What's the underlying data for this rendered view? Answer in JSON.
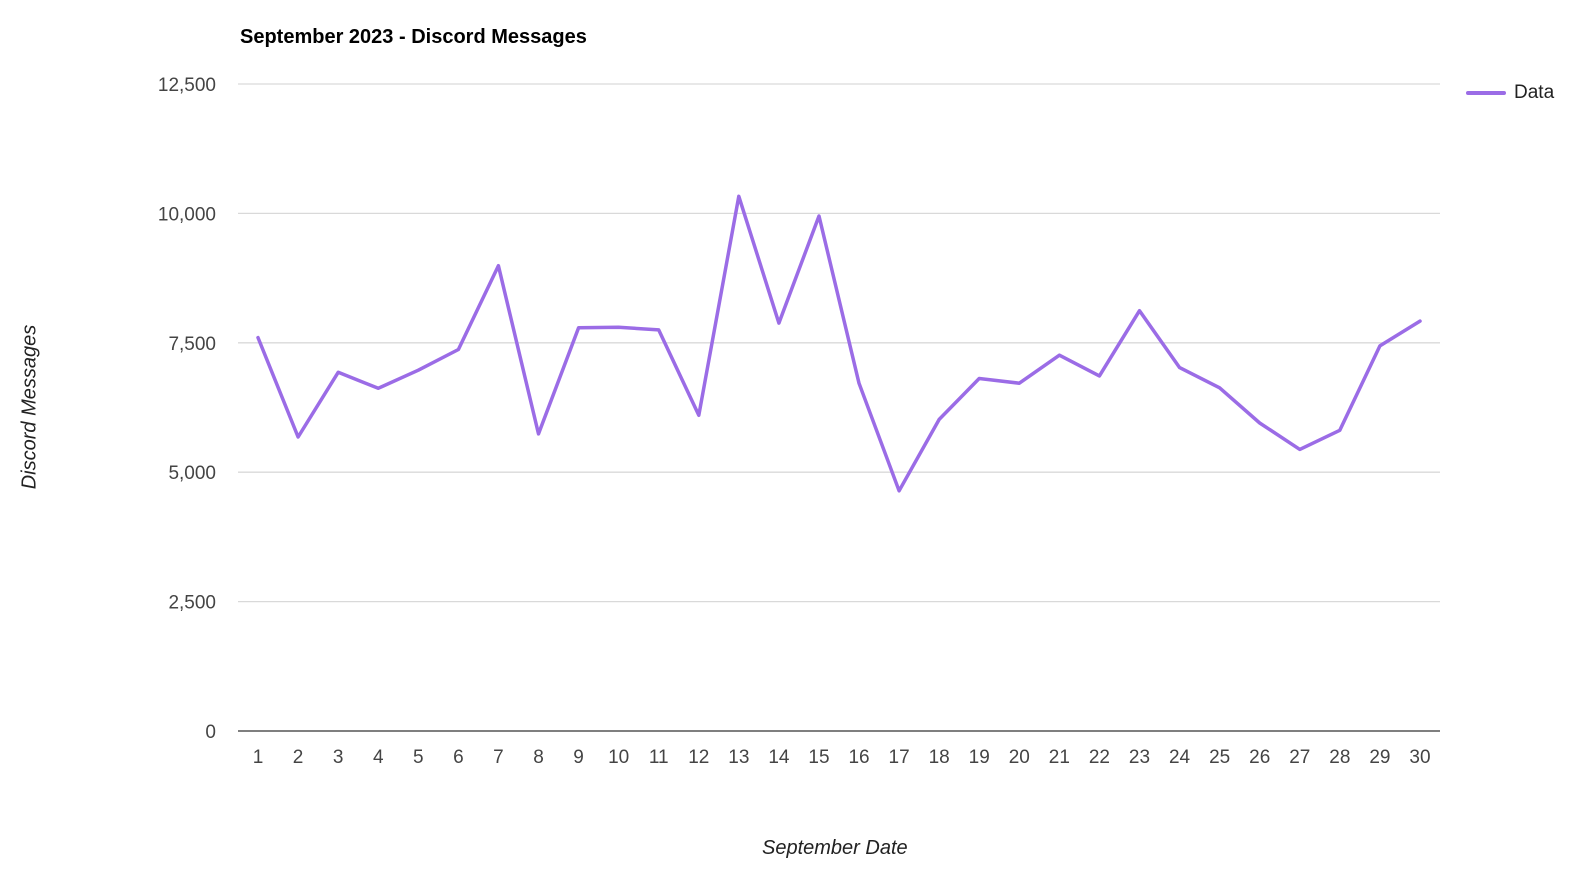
{
  "chart_data": {
    "type": "line",
    "title": "September 2023 - Discord Messages",
    "xlabel": "September Date",
    "ylabel": "Discord Messages",
    "categories": [
      "1",
      "2",
      "3",
      "4",
      "5",
      "6",
      "7",
      "8",
      "9",
      "10",
      "11",
      "12",
      "13",
      "14",
      "15",
      "16",
      "17",
      "18",
      "19",
      "20",
      "21",
      "22",
      "23",
      "24",
      "25",
      "26",
      "27",
      "28",
      "29",
      "30"
    ],
    "series": [
      {
        "name": "Data",
        "color": "#9b6ce6",
        "values": [
          7600,
          5680,
          6930,
          6620,
          6970,
          7370,
          8990,
          5740,
          7790,
          7800,
          7750,
          6100,
          10330,
          7880,
          9950,
          6720,
          4640,
          6020,
          6810,
          6720,
          7260,
          6860,
          8120,
          7020,
          6630,
          5950,
          5440,
          5810,
          7440,
          7920
        ]
      }
    ],
    "ylim": [
      0,
      12500
    ],
    "yticks": [
      0,
      2500,
      5000,
      7500,
      10000,
      12500
    ],
    "ytick_labels": [
      "0",
      "2,500",
      "5,000",
      "7,500",
      "10,000",
      "12,500"
    ],
    "grid": true,
    "legend_position": "top-right"
  }
}
